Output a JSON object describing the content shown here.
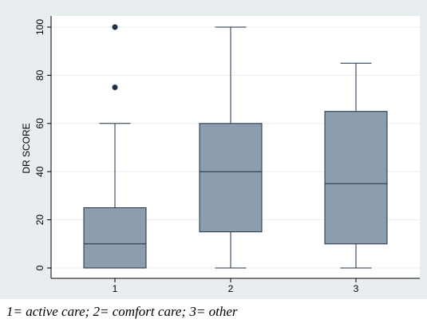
{
  "chart_data": {
    "type": "box",
    "title": "",
    "xlabel": "",
    "ylabel": "DR SCORE",
    "ylim": [
      -5,
      105
    ],
    "yticks": [
      0,
      20,
      40,
      60,
      80,
      100
    ],
    "categories": [
      "1",
      "2",
      "3"
    ],
    "grid": true,
    "legend": "none",
    "boxes": [
      {
        "category": "1",
        "whisker_low": 0,
        "q1": 0,
        "median": 10,
        "q3": 25,
        "whisker_high": 60,
        "outliers": [
          75,
          100
        ]
      },
      {
        "category": "2",
        "whisker_low": 0,
        "q1": 15,
        "median": 40,
        "q3": 60,
        "whisker_high": 100,
        "outliers": []
      },
      {
        "category": "3",
        "whisker_low": 0,
        "q1": 10,
        "median": 35,
        "q3": 65,
        "whisker_high": 85,
        "outliers": []
      }
    ],
    "colors": {
      "outer_background": "#e8eef0",
      "plot_background": "#ffffff",
      "box_fill": "#8b9dae",
      "box_stroke": "#1f2f44",
      "gridline": "#e8eef0",
      "outlier": "#1f2f44"
    }
  },
  "caption": "1= active care; 2= comfort care; 3= other"
}
